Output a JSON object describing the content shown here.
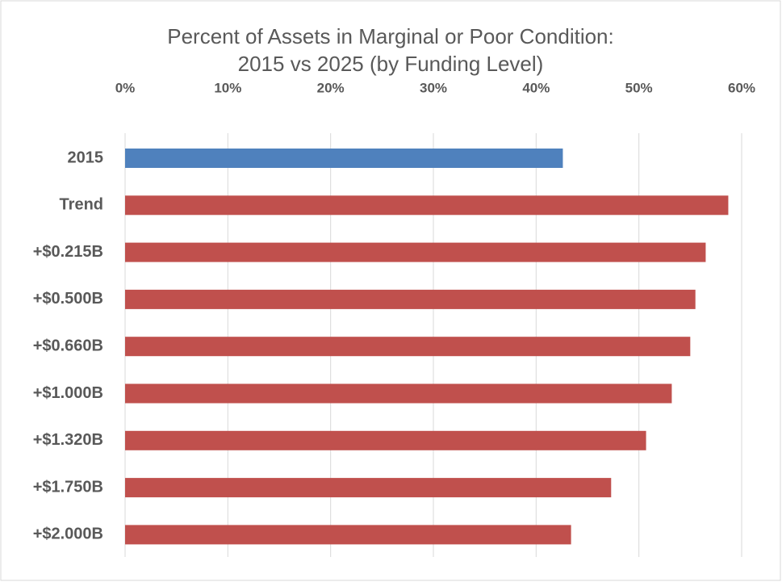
{
  "chart_data": {
    "type": "hbar",
    "title": [
      "Percent of Assets in Marginal or Poor Condition:",
      "2015 vs 2025 (by Funding Level)"
    ],
    "categories": [
      "2015",
      "Trend",
      "+$0.215B",
      "+$0.500B",
      "+$0.660B",
      "+$1.000B",
      "+$1.320B",
      "+$1.750B",
      "+$2.000B"
    ],
    "values": [
      42.6,
      58.7,
      56.5,
      55.5,
      55.0,
      53.2,
      50.7,
      47.3,
      43.4
    ],
    "colors": [
      "#4f81bd",
      "#c0504d",
      "#c0504d",
      "#c0504d",
      "#c0504d",
      "#c0504d",
      "#c0504d",
      "#c0504d",
      "#c0504d"
    ],
    "xlim": [
      0,
      60
    ],
    "xticks": [
      {
        "value": 0,
        "label": "0%"
      },
      {
        "value": 10,
        "label": "10%"
      },
      {
        "value": 20,
        "label": "20%"
      },
      {
        "value": 30,
        "label": "30%"
      },
      {
        "value": 40,
        "label": "40%"
      },
      {
        "value": 50,
        "label": "50%"
      },
      {
        "value": 60,
        "label": "60%"
      }
    ],
    "grid": true
  }
}
